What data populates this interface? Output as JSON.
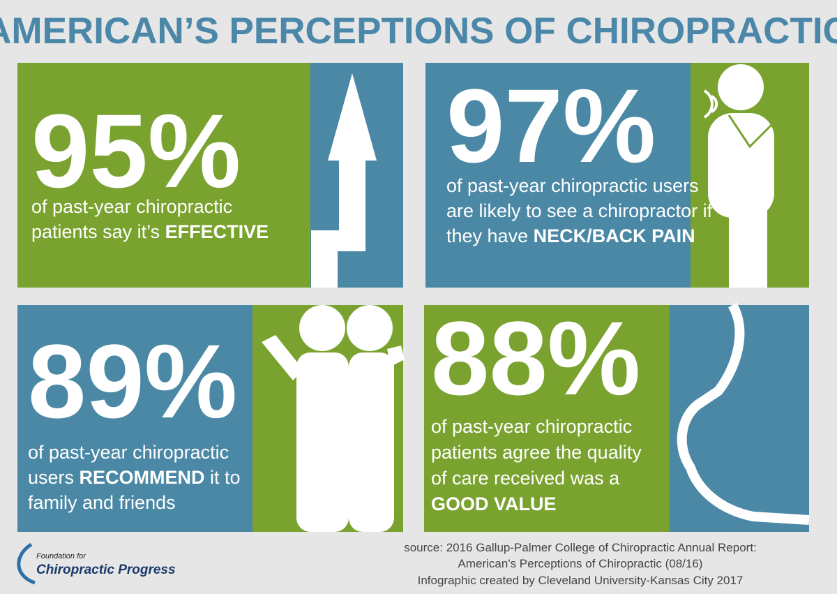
{
  "header": {
    "title": "AMERICAN’S PERCEPTIONS OF CHIROPRACTIC"
  },
  "panels": [
    {
      "stat": "95%",
      "lines": [
        [
          {
            "text": "of past-year chiropractic",
            "bold": false
          }
        ],
        [
          {
            "text": "patients say it’s ",
            "bold": false
          },
          {
            "text": "EFFECTIVE",
            "bold": true
          }
        ]
      ]
    },
    {
      "stat": "97%",
      "lines": [
        [
          {
            "text": "of past-year chiropractic users",
            "bold": false
          }
        ],
        [
          {
            "text": "are likely to see a chiropractor if",
            "bold": false
          }
        ],
        [
          {
            "text": "they have ",
            "bold": false
          },
          {
            "text": "NECK/BACK PAIN",
            "bold": true
          }
        ]
      ]
    },
    {
      "stat": "89%",
      "lines": [
        [
          {
            "text": "of past-year chiropractic",
            "bold": false
          }
        ],
        [
          {
            "text": "users ",
            "bold": false
          },
          {
            "text": "RECOMMEND",
            "bold": true
          },
          {
            "text": " it to",
            "bold": false
          }
        ],
        [
          {
            "text": "family and friends",
            "bold": false
          }
        ]
      ]
    },
    {
      "stat": "88%",
      "lines": [
        [
          {
            "text": "of past-year chiropractic",
            "bold": false
          }
        ],
        [
          {
            "text": "patients agree the quality",
            "bold": false
          }
        ],
        [
          {
            "text": "of care received was a",
            "bold": false
          }
        ],
        [
          {
            "text": "GOOD VALUE",
            "bold": true
          }
        ]
      ]
    }
  ],
  "footer": {
    "logo": {
      "small": "Foundation for",
      "main": "Chiropractic Progress"
    },
    "source": [
      "source: 2016 Gallup-Palmer College of Chiropractic Annual Report:",
      "American's Perceptions of Chiropractic (08/16)",
      "Infographic created by Cleveland University-Kansas City 2017"
    ]
  }
}
